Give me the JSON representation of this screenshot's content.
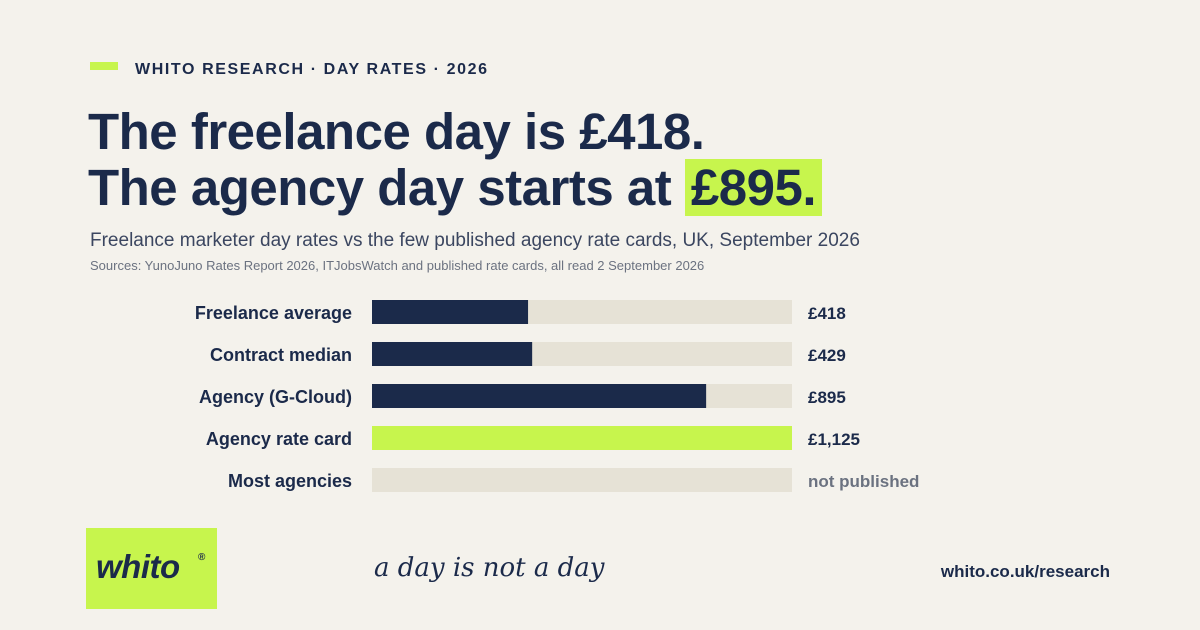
{
  "kicker": "WHITO RESEARCH · DAY RATES · 2026",
  "headline": {
    "line1": "The freelance day is £418.",
    "line2_prefix": "The agency day starts at ",
    "line2_highlight": "£895."
  },
  "subtitle": "Freelance marketer day rates vs the few published agency rate cards, UK, September 2026",
  "sources": "Sources: YunoJuno Rates Report 2026, ITJobsWatch and published rate cards, all read 2 September 2026",
  "colors": {
    "accent": "#c7f54d",
    "navy": "#1b2a4a",
    "track": "#e6e2d6",
    "muted": "#6b7280",
    "background": "#f4f2ec"
  },
  "chart_data": {
    "type": "bar",
    "orientation": "horizontal",
    "categories": [
      "Freelance average",
      "Contract median",
      "Agency (G-Cloud)",
      "Agency rate card",
      "Most agencies"
    ],
    "values": [
      418,
      429,
      895,
      1125,
      null
    ],
    "value_labels": [
      "£418",
      "£429",
      "£895",
      "£1,125",
      "not published"
    ],
    "highlight_index": 3,
    "xlim": [
      0,
      1125
    ],
    "grid": false,
    "legend": "none"
  },
  "brand": {
    "logo_text": "whito",
    "logo_mark": "®",
    "tagline": "a day is not a day",
    "url": "whito.co.uk/research"
  }
}
